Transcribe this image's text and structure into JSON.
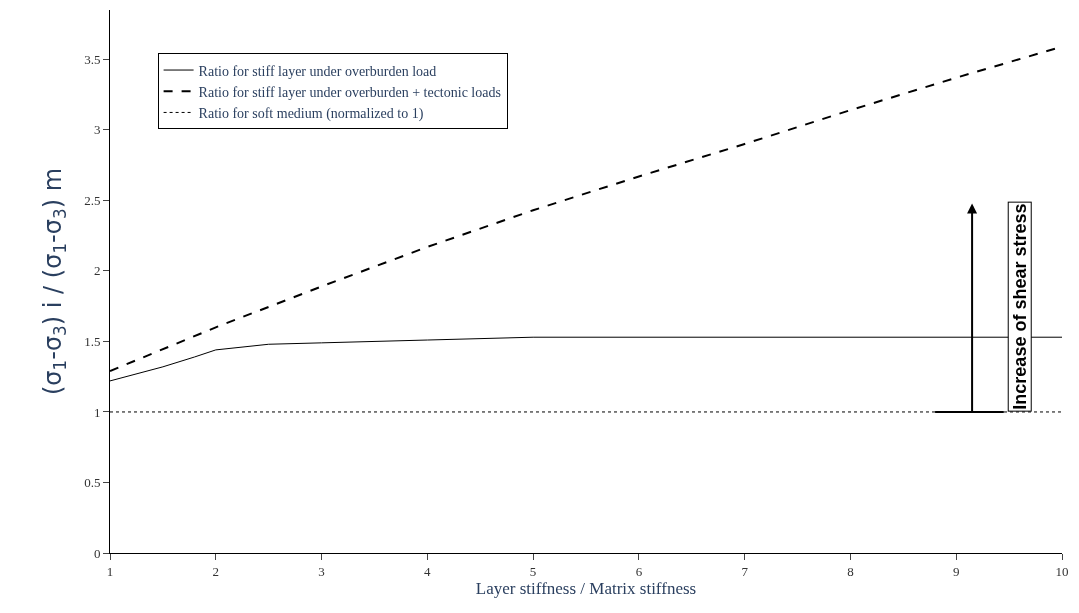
{
  "chart_data": {
    "type": "line",
    "xlabel": "Layer stiffness / Matrix stiffness",
    "ylabel": "(σ$_{1}$-σ$_{3}$) i / (σ$_{1}$-σ$_{3}$) m",
    "xlim": [
      1,
      10
    ],
    "xticks": [
      1,
      2,
      3,
      4,
      5,
      6,
      7,
      8,
      9,
      10
    ],
    "ylim": [
      0,
      3.85
    ],
    "yticks": [
      0,
      0.5,
      1,
      1.5,
      2,
      2.5,
      3,
      3.5
    ],
    "legend": "top left",
    "series": [
      {
        "name": "Ratio for stiff layer under overburden load",
        "color": "#000000",
        "line_style": "solid",
        "x": [
          1,
          1.5,
          1.8,
          2,
          2.5,
          3,
          4,
          5,
          10
        ],
        "values": [
          1.22,
          1.32,
          1.39,
          1.44,
          1.48,
          1.49,
          1.51,
          1.53,
          1.53
        ]
      },
      {
        "name": "Ratio for stiff layer under overburden + tectonic loads",
        "color": "#000000",
        "line_style": "dashed",
        "x": [
          1,
          2,
          3,
          4,
          5,
          6,
          7,
          8,
          9,
          10
        ],
        "values": [
          1.29,
          1.6,
          1.89,
          2.17,
          2.43,
          2.67,
          2.9,
          3.14,
          3.37,
          3.59
        ]
      },
      {
        "name": "Ratio for soft medium (normalized to 1)",
        "color": "#000000",
        "line_style": "dotted",
        "x": [
          1,
          10
        ],
        "values": [
          1,
          1
        ]
      }
    ],
    "annotations": [
      {
        "text": "Increase of shear stress",
        "x": 9.15,
        "y": 1
      }
    ]
  }
}
